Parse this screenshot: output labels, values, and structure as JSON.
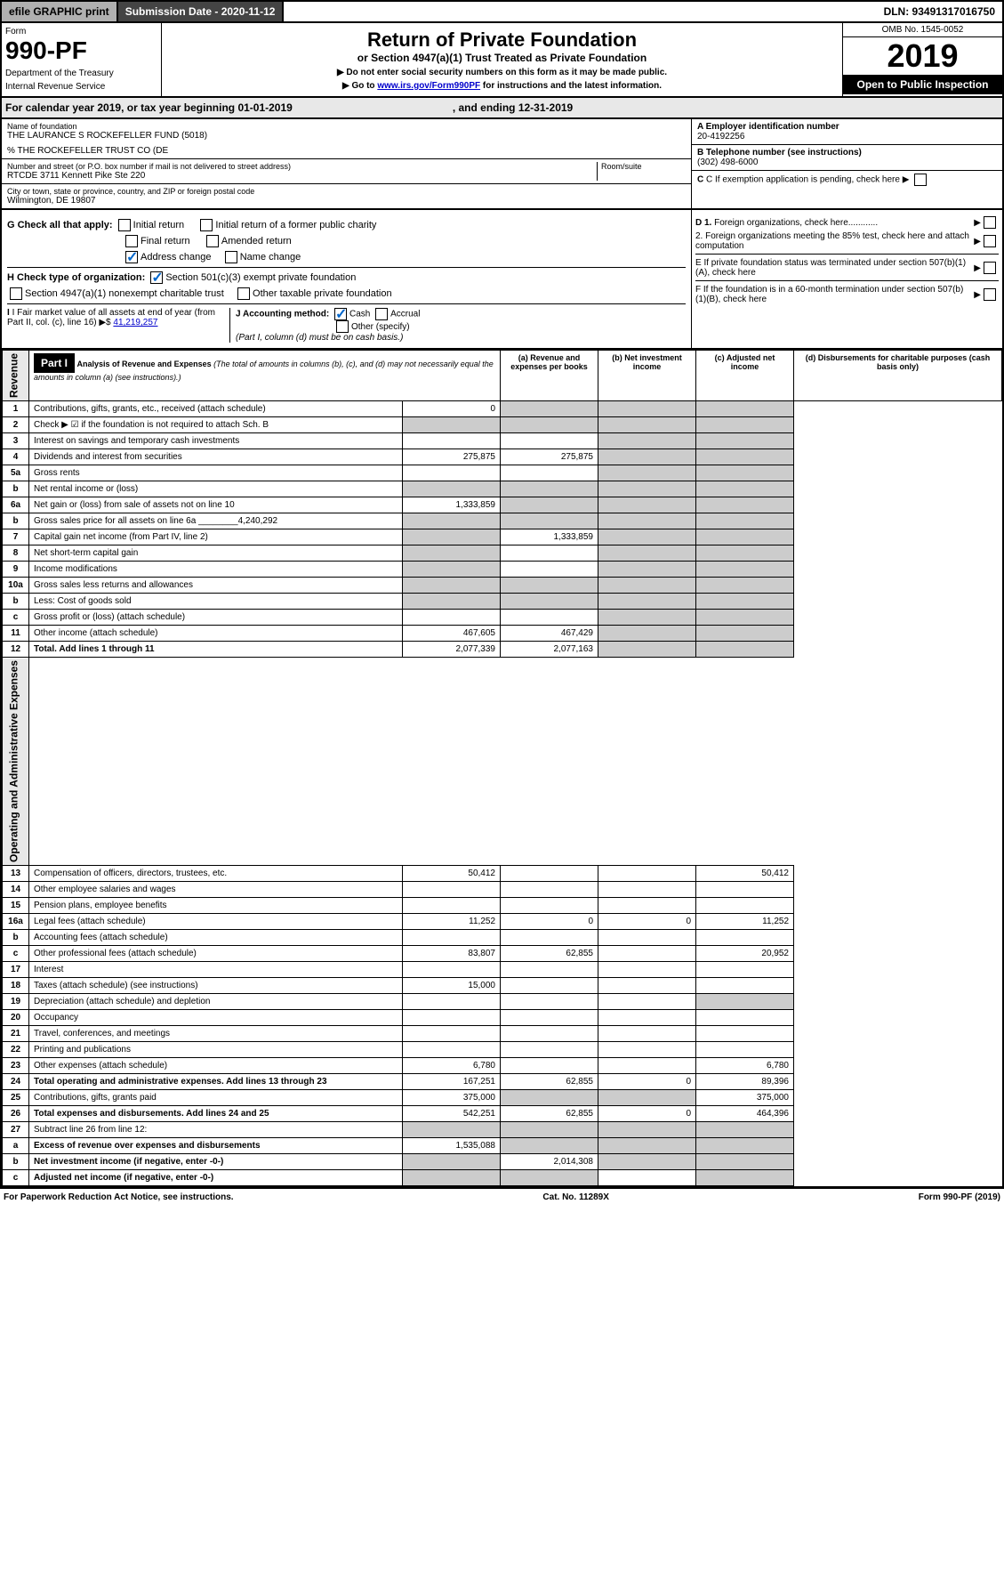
{
  "top": {
    "efile": "efile GRAPHIC print",
    "submission": "Submission Date - 2020-11-12",
    "dln": "DLN: 93491317016750"
  },
  "header": {
    "form": "Form",
    "form_num": "990-PF",
    "dept": "Department of the Treasury",
    "irs": "Internal Revenue Service",
    "title": "Return of Private Foundation",
    "subtitle": "or Section 4947(a)(1) Trust Treated as Private Foundation",
    "note1": "▶ Do not enter social security numbers on this form as it may be made public.",
    "note2_pre": "▶ Go to ",
    "note2_link": "www.irs.gov/Form990PF",
    "note2_post": " for instructions and the latest information.",
    "omb": "OMB No. 1545-0052",
    "year": "2019",
    "open": "Open to Public Inspection"
  },
  "cal": {
    "text": "For calendar year 2019, or tax year beginning 01-01-2019",
    "ending": ", and ending 12-31-2019"
  },
  "info": {
    "name_label": "Name of foundation",
    "name": "THE LAURANCE S ROCKEFELLER FUND (5018)",
    "care_of": "% THE ROCKEFELLER TRUST CO (DE",
    "addr_label": "Number and street (or P.O. box number if mail is not delivered to street address)",
    "addr": "RTCDE 3711 Kennett Pike Ste 220",
    "room_label": "Room/suite",
    "city_label": "City or town, state or province, country, and ZIP or foreign postal code",
    "city": "Wilmington, DE  19807",
    "a_label": "A Employer identification number",
    "ein": "20-4192256",
    "b_label": "B Telephone number (see instructions)",
    "phone": "(302) 498-6000",
    "c_label": "C If exemption application is pending, check here",
    "d1": "D 1. Foreign organizations, check here",
    "d2": "2. Foreign organizations meeting the 85% test, check here and attach computation",
    "e": "E  If private foundation status was terminated under section 507(b)(1)(A), check here",
    "f": "F  If the foundation is in a 60-month termination under section 507(b)(1)(B), check here"
  },
  "g": {
    "label": "G Check all that apply:",
    "initial": "Initial return",
    "initial_former": "Initial return of a former public charity",
    "final": "Final return",
    "amended": "Amended return",
    "address": "Address change",
    "name_change": "Name change"
  },
  "h": {
    "label": "H Check type of organization:",
    "c3": "Section 501(c)(3) exempt private foundation",
    "trust": "Section 4947(a)(1) nonexempt charitable trust",
    "other": "Other taxable private foundation"
  },
  "i": {
    "label": "I Fair market value of all assets at end of year (from Part II, col. (c), line 16) ▶$",
    "value": "41,219,257"
  },
  "j": {
    "label": "J Accounting method:",
    "cash": "Cash",
    "accrual": "Accrual",
    "other": "Other (specify)",
    "note": "(Part I, column (d) must be on cash basis.)"
  },
  "part1": {
    "label": "Part I",
    "title": "Analysis of Revenue and Expenses",
    "title_note": "(The total of amounts in columns (b), (c), and (d) may not necessarily equal the amounts in column (a) (see instructions).)",
    "col_a": "(a)    Revenue and expenses per books",
    "col_b": "(b)   Net investment income",
    "col_c": "(c)   Adjusted net income",
    "col_d": "(d)   Disbursements for charitable purposes (cash basis only)"
  },
  "sections": {
    "revenue": "Revenue",
    "expenses": "Operating and Administrative Expenses"
  },
  "rows": [
    {
      "n": "1",
      "desc": "Contributions, gifts, grants, etc., received (attach schedule)",
      "a": "0"
    },
    {
      "n": "2",
      "desc": "Check ▶ ☑ if the foundation is not required to attach Sch. B"
    },
    {
      "n": "3",
      "desc": "Interest on savings and temporary cash investments"
    },
    {
      "n": "4",
      "desc": "Dividends and interest from securities",
      "a": "275,875",
      "b": "275,875"
    },
    {
      "n": "5a",
      "desc": "Gross rents"
    },
    {
      "n": "b",
      "desc": "Net rental income or (loss)"
    },
    {
      "n": "6a",
      "desc": "Net gain or (loss) from sale of assets not on line 10",
      "a": "1,333,859"
    },
    {
      "n": "b",
      "desc": "Gross sales price for all assets on line 6a ________4,240,292"
    },
    {
      "n": "7",
      "desc": "Capital gain net income (from Part IV, line 2)",
      "b": "1,333,859"
    },
    {
      "n": "8",
      "desc": "Net short-term capital gain"
    },
    {
      "n": "9",
      "desc": "Income modifications"
    },
    {
      "n": "10a",
      "desc": "Gross sales less returns and allowances"
    },
    {
      "n": "b",
      "desc": "Less: Cost of goods sold"
    },
    {
      "n": "c",
      "desc": "Gross profit or (loss) (attach schedule)"
    },
    {
      "n": "11",
      "desc": "Other income (attach schedule)",
      "a": "467,605",
      "b": "467,429"
    },
    {
      "n": "12",
      "desc": "Total. Add lines 1 through 11",
      "a": "2,077,339",
      "b": "2,077,163",
      "bold": true
    },
    {
      "n": "13",
      "desc": "Compensation of officers, directors, trustees, etc.",
      "a": "50,412",
      "d": "50,412"
    },
    {
      "n": "14",
      "desc": "Other employee salaries and wages"
    },
    {
      "n": "15",
      "desc": "Pension plans, employee benefits"
    },
    {
      "n": "16a",
      "desc": "Legal fees (attach schedule)",
      "a": "11,252",
      "b": "0",
      "c": "0",
      "d": "11,252"
    },
    {
      "n": "b",
      "desc": "Accounting fees (attach schedule)"
    },
    {
      "n": "c",
      "desc": "Other professional fees (attach schedule)",
      "a": "83,807",
      "b": "62,855",
      "d": "20,952"
    },
    {
      "n": "17",
      "desc": "Interest"
    },
    {
      "n": "18",
      "desc": "Taxes (attach schedule) (see instructions)",
      "a": "15,000"
    },
    {
      "n": "19",
      "desc": "Depreciation (attach schedule) and depletion"
    },
    {
      "n": "20",
      "desc": "Occupancy"
    },
    {
      "n": "21",
      "desc": "Travel, conferences, and meetings"
    },
    {
      "n": "22",
      "desc": "Printing and publications"
    },
    {
      "n": "23",
      "desc": "Other expenses (attach schedule)",
      "a": "6,780",
      "d": "6,780"
    },
    {
      "n": "24",
      "desc": "Total operating and administrative expenses. Add lines 13 through 23",
      "a": "167,251",
      "b": "62,855",
      "c": "0",
      "d": "89,396",
      "bold": true
    },
    {
      "n": "25",
      "desc": "Contributions, gifts, grants paid",
      "a": "375,000",
      "d": "375,000"
    },
    {
      "n": "26",
      "desc": "Total expenses and disbursements. Add lines 24 and 25",
      "a": "542,251",
      "b": "62,855",
      "c": "0",
      "d": "464,396",
      "bold": true
    },
    {
      "n": "27",
      "desc": "Subtract line 26 from line 12:"
    },
    {
      "n": "a",
      "desc": "Excess of revenue over expenses and disbursements",
      "a": "1,535,088",
      "bold": true
    },
    {
      "n": "b",
      "desc": "Net investment income (if negative, enter -0-)",
      "b": "2,014,308",
      "bold": true
    },
    {
      "n": "c",
      "desc": "Adjusted net income (if negative, enter -0-)",
      "bold": true
    }
  ],
  "footer": {
    "left": "For Paperwork Reduction Act Notice, see instructions.",
    "mid": "Cat. No. 11289X",
    "right": "Form 990-PF (2019)"
  }
}
